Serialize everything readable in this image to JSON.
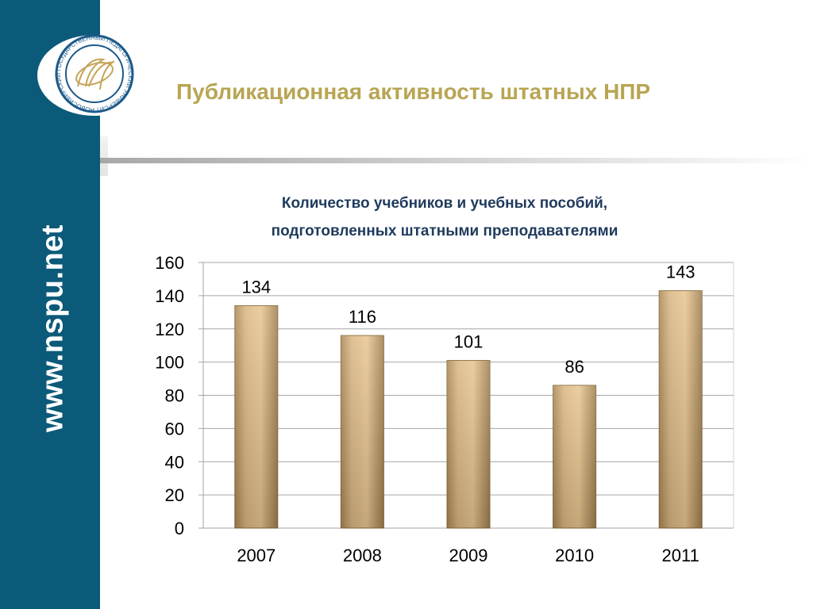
{
  "side": {
    "url": "www.nspu.net"
  },
  "logo": {
    "ring_text": "НОВОСИБИРСКИЙ ГОСУДАРСТВЕННЫЙ ПЕДАГОГИЧЕСКИЙ УНИВЕРСИТЕТ"
  },
  "header": {
    "title": "Публикационная активность штатных НПР"
  },
  "chart_data": {
    "type": "bar",
    "title_lines": [
      "Количество учебников и учебных пособий,",
      "подготовленных штатными преподавателями"
    ],
    "categories": [
      "2007",
      "2008",
      "2009",
      "2010",
      "2011"
    ],
    "values": [
      134,
      116,
      101,
      86,
      143
    ],
    "data_labels": [
      "134",
      "116",
      "101",
      "86",
      "143"
    ],
    "ylim": [
      0,
      160
    ],
    "yticks": [
      "0",
      "20",
      "40",
      "60",
      "80",
      "100",
      "120",
      "140",
      "160"
    ],
    "xlabel": "",
    "ylabel": "",
    "grid": true,
    "legend": "none",
    "bar_color": "#d8b27c"
  }
}
